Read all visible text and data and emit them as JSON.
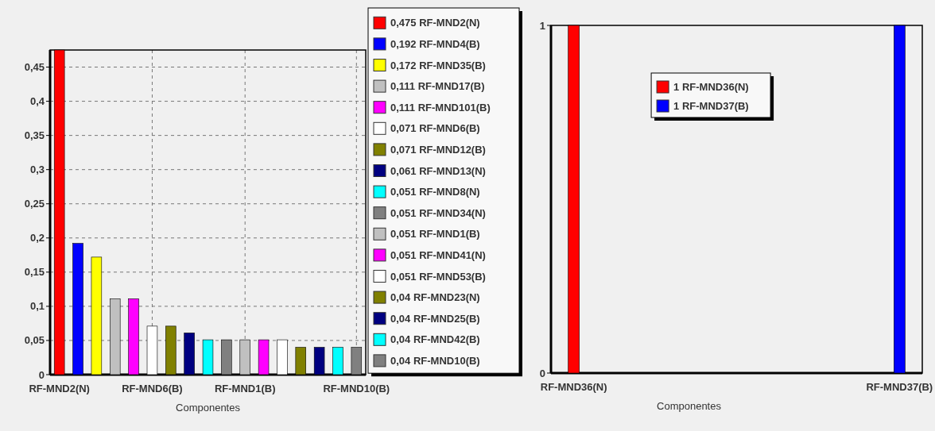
{
  "chart_data": [
    {
      "type": "bar",
      "xlabel": "Componentes",
      "stacked": true,
      "grid": true,
      "legend": "right",
      "categories": [
        "RF-MND2(N)",
        null,
        null,
        null,
        null,
        "RF-MND6(B)",
        null,
        null,
        null,
        null,
        "RF-MND1(B)",
        null,
        null,
        null,
        null,
        null,
        "RF-MND10(B)"
      ],
      "ylim": [
        0,
        0.475
      ],
      "yticks": [
        {
          "value": 0,
          "label": "0"
        },
        {
          "value": 0.05,
          "label": "0,05"
        },
        {
          "value": 0.1,
          "label": "0,1"
        },
        {
          "value": 0.15,
          "label": "0,15"
        },
        {
          "value": 0.2,
          "label": "0,2"
        },
        {
          "value": 0.25,
          "label": "0,25"
        },
        {
          "value": 0.3,
          "label": "0,3"
        },
        {
          "value": 0.35,
          "label": "0,35"
        },
        {
          "value": 0.4,
          "label": "0,4"
        },
        {
          "value": 0.45,
          "label": "0,45"
        }
      ],
      "series": [
        {
          "name": "0,475 RF-MND2(N)",
          "color": "#ff0000",
          "values": [
            0.475,
            null,
            null,
            null,
            null,
            null,
            null,
            null,
            null,
            null,
            null,
            null,
            null,
            null,
            null,
            null,
            null
          ]
        },
        {
          "name": "0,192 RF-MND4(B)",
          "color": "#0000ff",
          "values": [
            null,
            0.192,
            null,
            null,
            null,
            null,
            null,
            null,
            null,
            null,
            null,
            null,
            null,
            null,
            null,
            null,
            null
          ]
        },
        {
          "name": "0,172 RF-MND35(B)",
          "color": "#ffff00",
          "values": [
            null,
            null,
            0.172,
            null,
            null,
            null,
            null,
            null,
            null,
            null,
            null,
            null,
            null,
            null,
            null,
            null,
            null
          ]
        },
        {
          "name": "0,111 RF-MND17(B)",
          "color": "#c0c0c0",
          "values": [
            null,
            null,
            null,
            0.111,
            null,
            null,
            null,
            null,
            null,
            null,
            null,
            null,
            null,
            null,
            null,
            null,
            null
          ]
        },
        {
          "name": "0,111 RF-MND101(B)",
          "color": "#ff00ff",
          "values": [
            null,
            null,
            null,
            null,
            0.111,
            null,
            null,
            null,
            null,
            null,
            null,
            null,
            null,
            null,
            null,
            null,
            null
          ]
        },
        {
          "name": "0,071 RF-MND6(B)",
          "color": "#ffffff",
          "values": [
            null,
            null,
            null,
            null,
            null,
            0.071,
            null,
            null,
            null,
            null,
            null,
            null,
            null,
            null,
            null,
            null,
            null
          ]
        },
        {
          "name": "0,071 RF-MND12(B)",
          "color": "#808000",
          "values": [
            null,
            null,
            null,
            null,
            null,
            null,
            0.071,
            null,
            null,
            null,
            null,
            null,
            null,
            null,
            null,
            null,
            null
          ]
        },
        {
          "name": "0,061 RF-MND13(N)",
          "color": "#000080",
          "values": [
            null,
            null,
            null,
            null,
            null,
            null,
            null,
            0.061,
            null,
            null,
            null,
            null,
            null,
            null,
            null,
            null,
            null
          ]
        },
        {
          "name": "0,051 RF-MND8(N)",
          "color": "#00ffff",
          "values": [
            null,
            null,
            null,
            null,
            null,
            null,
            null,
            null,
            0.051,
            null,
            null,
            null,
            null,
            null,
            null,
            null,
            null
          ]
        },
        {
          "name": "0,051 RF-MND34(N)",
          "color": "#808080",
          "values": [
            null,
            null,
            null,
            null,
            null,
            null,
            null,
            null,
            null,
            0.051,
            null,
            null,
            null,
            null,
            null,
            null,
            null
          ]
        },
        {
          "name": "0,051 RF-MND1(B)",
          "color": "#c0c0c0",
          "values": [
            null,
            null,
            null,
            null,
            null,
            null,
            null,
            null,
            null,
            null,
            0.051,
            null,
            null,
            null,
            null,
            null,
            null
          ]
        },
        {
          "name": "0,051 RF-MND41(N)",
          "color": "#ff00ff",
          "values": [
            null,
            null,
            null,
            null,
            null,
            null,
            null,
            null,
            null,
            null,
            null,
            0.051,
            null,
            null,
            null,
            null,
            null
          ]
        },
        {
          "name": "0,051 RF-MND53(B)",
          "color": "#ffffff",
          "values": [
            null,
            null,
            null,
            null,
            null,
            null,
            null,
            null,
            null,
            null,
            null,
            null,
            0.051,
            null,
            null,
            null,
            null
          ]
        },
        {
          "name": "0,04 RF-MND23(N)",
          "color": "#808000",
          "values": [
            null,
            null,
            null,
            null,
            null,
            null,
            null,
            null,
            null,
            null,
            null,
            null,
            null,
            0.04,
            null,
            null,
            null
          ]
        },
        {
          "name": "0,04 RF-MND25(B)",
          "color": "#000080",
          "values": [
            null,
            null,
            null,
            null,
            null,
            null,
            null,
            null,
            null,
            null,
            null,
            null,
            null,
            null,
            0.04,
            null,
            null
          ]
        },
        {
          "name": "0,04 RF-MND42(B)",
          "color": "#00ffff",
          "values": [
            null,
            null,
            null,
            null,
            null,
            null,
            null,
            null,
            null,
            null,
            null,
            null,
            null,
            null,
            null,
            0.04,
            null
          ]
        },
        {
          "name": "0,04 RF-MND10(B)",
          "color": "#808080",
          "values": [
            null,
            null,
            null,
            null,
            null,
            null,
            null,
            null,
            null,
            null,
            null,
            null,
            null,
            null,
            null,
            null,
            0.04
          ]
        }
      ]
    },
    {
      "type": "bar",
      "xlabel": "Componentes",
      "stacked": true,
      "legend": "top",
      "categories": [
        "RF-MND36(N)",
        "RF-MND37(B)"
      ],
      "ylim": [
        0,
        1
      ],
      "yticks": [
        0,
        1
      ],
      "series": [
        {
          "name": "1 RF-MND36(N)",
          "color": "#ff0000",
          "values": [
            1,
            null
          ]
        },
        {
          "name": "1 RF-MND37(B)",
          "color": "#0000ff",
          "values": [
            null,
            1
          ]
        }
      ]
    }
  ]
}
